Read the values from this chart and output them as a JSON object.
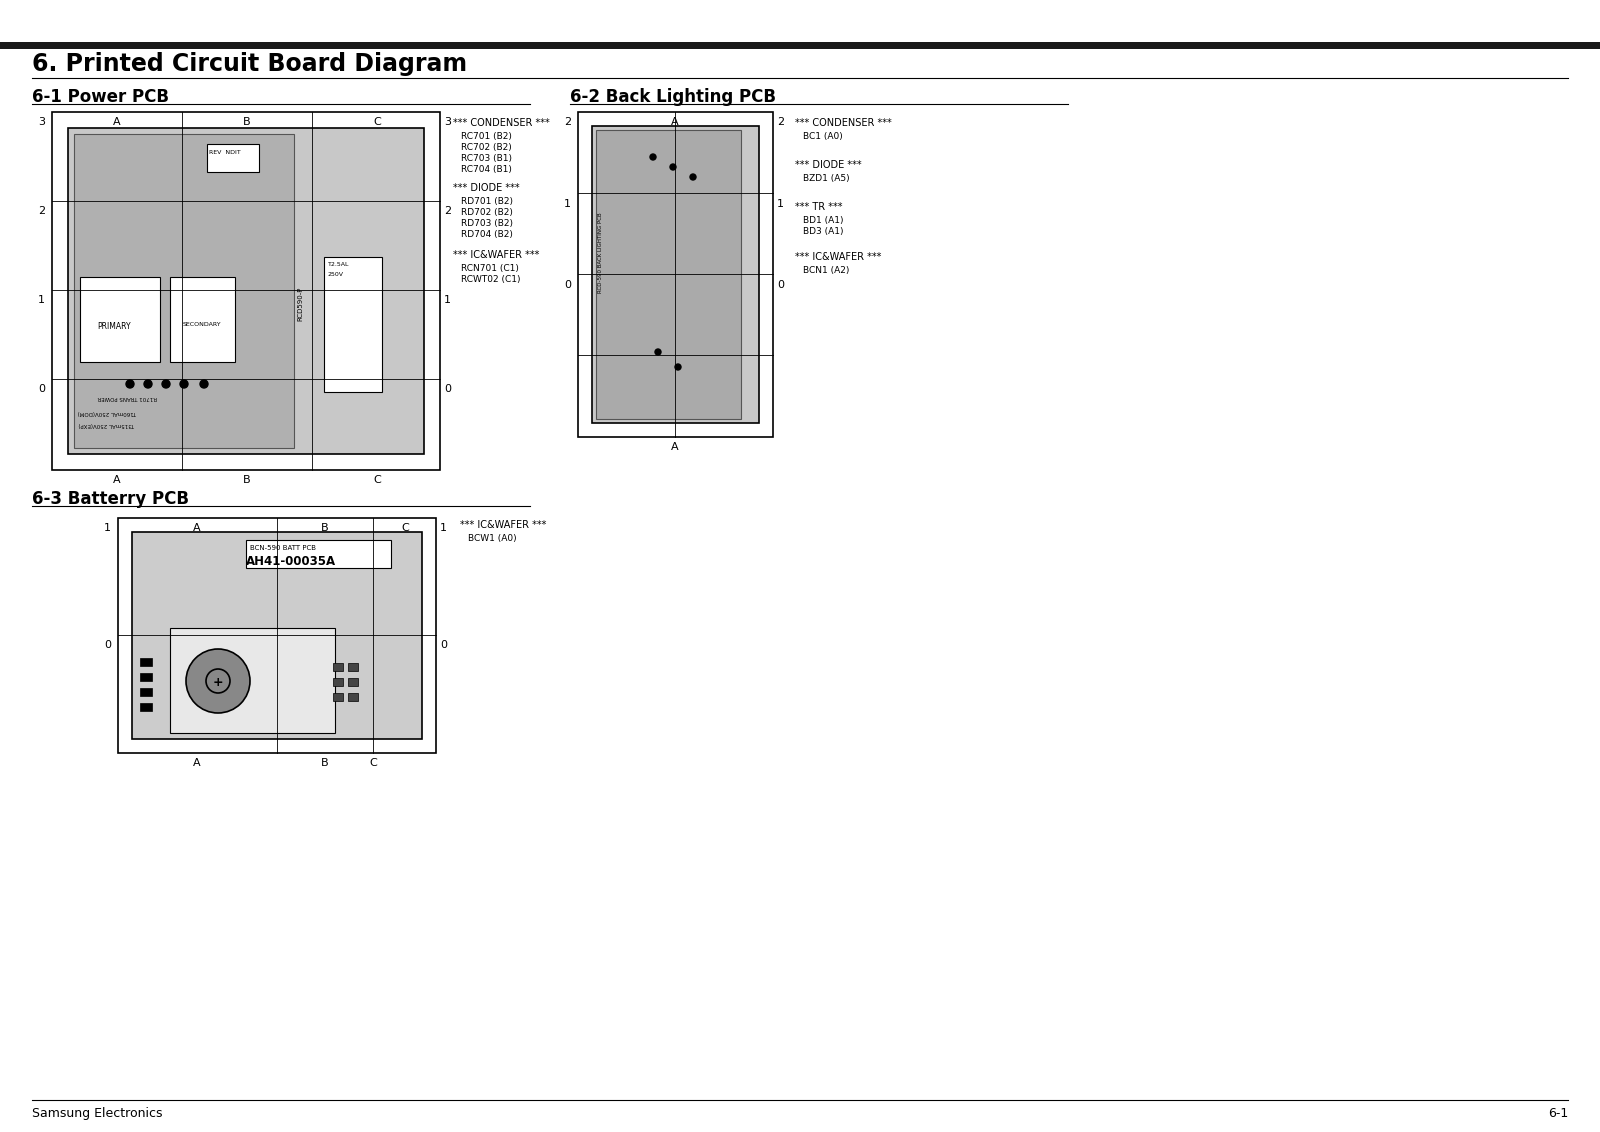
{
  "title": "6. Printed Circuit Board Diagram",
  "section1_title": "6-1 Power PCB",
  "section2_title": "6-2 Back Lighting PCB",
  "section3_title": "6-3 Batterry PCB",
  "footer_left": "Samsung Electronics",
  "footer_right": "6-1",
  "bg_color": "#ffffff",
  "header_bar_color": "#1a1a1a",
  "pcb_bg": "#c8c8c8",
  "power_pcb_condenser_title": "*** CONDENSER ***",
  "power_pcb_condenser_items": [
    "RC701 (B2)",
    "RC702 (B2)",
    "RC703 (B1)",
    "RC704 (B1)"
  ],
  "power_pcb_diode_title": "*** DIODE ***",
  "power_pcb_diode_items": [
    "RD701 (B2)",
    "RD702 (B2)",
    "RD703 (B2)",
    "RD704 (B2)"
  ],
  "power_pcb_icwafer_title": "*** IC&WAFER ***",
  "power_pcb_icwafer_items": [
    "RCN701 (C1)",
    "RCWT02 (C1)"
  ],
  "backlight_pcb_condenser_title": "*** CONDENSER ***",
  "backlight_pcb_condenser_items": [
    "BC1 (A0)"
  ],
  "backlight_pcb_diode_title": "*** DIODE ***",
  "backlight_pcb_diode_items": [
    "BZD1 (A5)"
  ],
  "backlight_pcb_tr_title": "*** TR ***",
  "backlight_pcb_tr_items": [
    "BD1 (A1)",
    "BD3 (A1)"
  ],
  "backlight_pcb_icwafer_title": "*** IC&WAFER ***",
  "backlight_pcb_icwafer_items": [
    "BCN1 (A2)"
  ],
  "battery_pcb_icwafer_title": "*** IC&WAFER ***",
  "battery_pcb_icwafer_items": [
    "BCW1 (A0)"
  ],
  "battery_label": "BCN-590 BATT PCB",
  "battery_number": "AH41-00035A"
}
